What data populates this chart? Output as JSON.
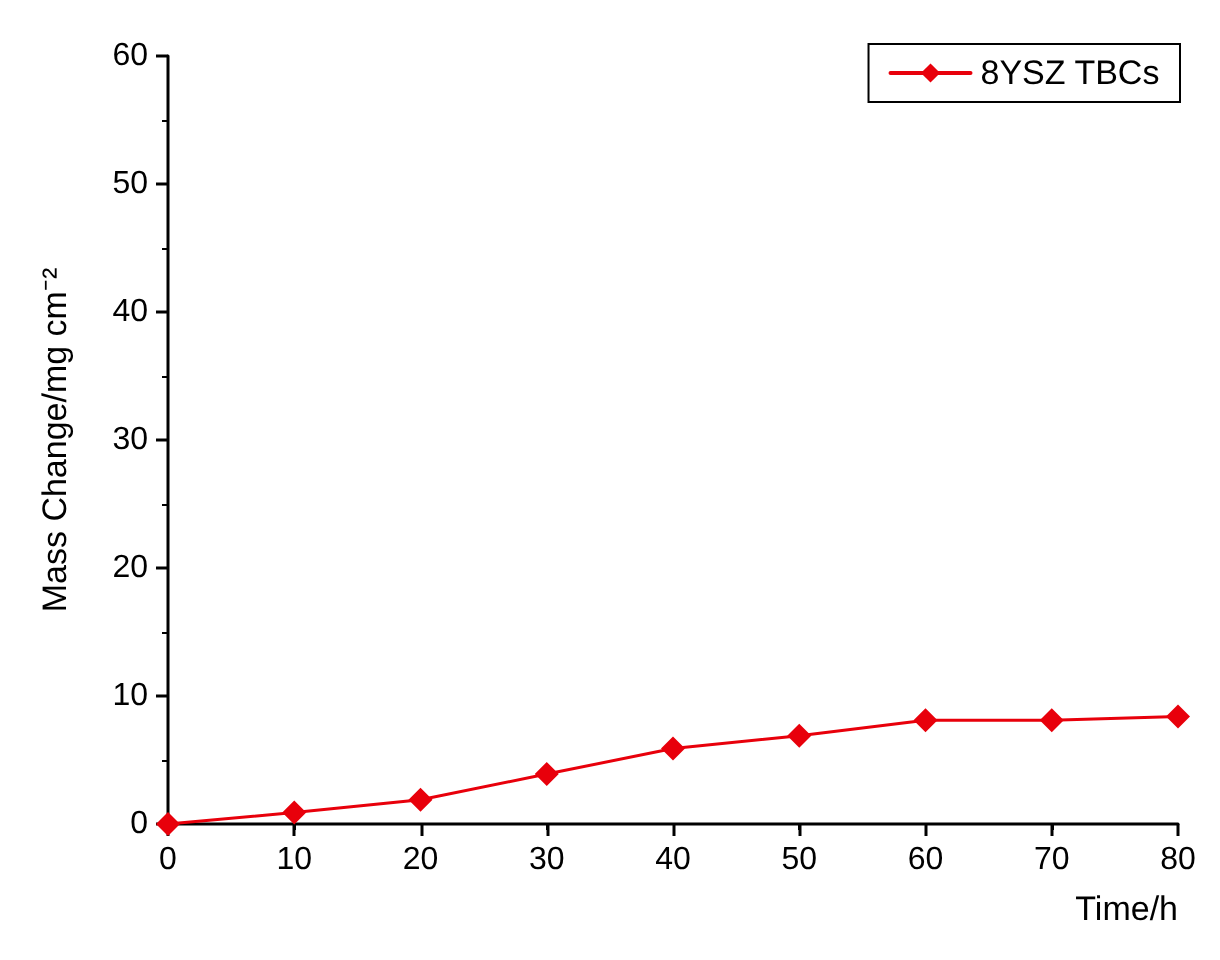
{
  "chart_data": {
    "type": "line",
    "xlabel": "Time/h",
    "ylabel": "Mass Change/mg cm⁻²",
    "x": [
      0,
      10,
      20,
      30,
      40,
      50,
      60,
      70,
      80
    ],
    "series": [
      {
        "name": "8YSZ TBCs",
        "color": "#e8000b",
        "values": [
          0,
          0.9,
          1.9,
          3.9,
          5.9,
          6.9,
          8.1,
          8.1,
          8.4
        ]
      }
    ],
    "xlim": [
      0,
      80
    ],
    "xticks": [
      0,
      10,
      20,
      30,
      40,
      50,
      60,
      70,
      80
    ],
    "ylim": [
      0,
      60
    ],
    "yticks": [
      0,
      10,
      20,
      30,
      40,
      50,
      60
    ],
    "grid": false,
    "legend": "top right",
    "marker": "diamond",
    "line_style": "solid"
  }
}
